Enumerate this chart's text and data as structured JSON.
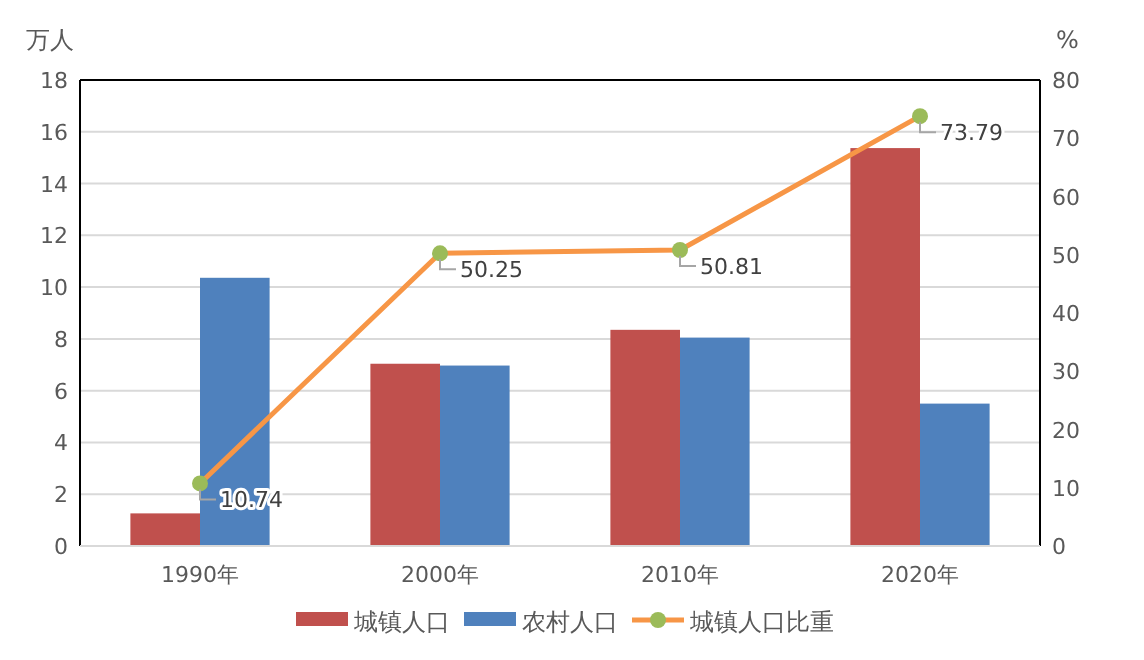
{
  "chart_data": {
    "type": "bar",
    "categories": [
      "1990年",
      "2000年",
      "2010年",
      "2020年"
    ],
    "ylabel": "万人",
    "y2label": "%",
    "ylim": [
      0,
      18
    ],
    "yticks": [
      0,
      2,
      4,
      6,
      8,
      10,
      12,
      14,
      16,
      18
    ],
    "y2lim": [
      0,
      80
    ],
    "y2ticks": [
      0,
      10,
      20,
      30,
      40,
      50,
      60,
      70,
      80
    ],
    "grid": "y",
    "legend": "bottom",
    "series": [
      {
        "name": "城镇人口",
        "color": "#c0504d",
        "values": [
          1.26,
          7.04,
          8.35,
          15.37
        ]
      },
      {
        "name": "农村人口",
        "color": "#4f81bd",
        "values": [
          10.36,
          6.97,
          8.05,
          5.5
        ]
      },
      {
        "name": "城镇人口比重",
        "type": "line",
        "axis": "y2",
        "color": "#f79646",
        "marker": "circle",
        "values": [
          10.74,
          50.25,
          50.81,
          73.79
        ],
        "value_labels": [
          "10.74",
          "50.25",
          "50.81",
          "73.79"
        ]
      }
    ]
  }
}
